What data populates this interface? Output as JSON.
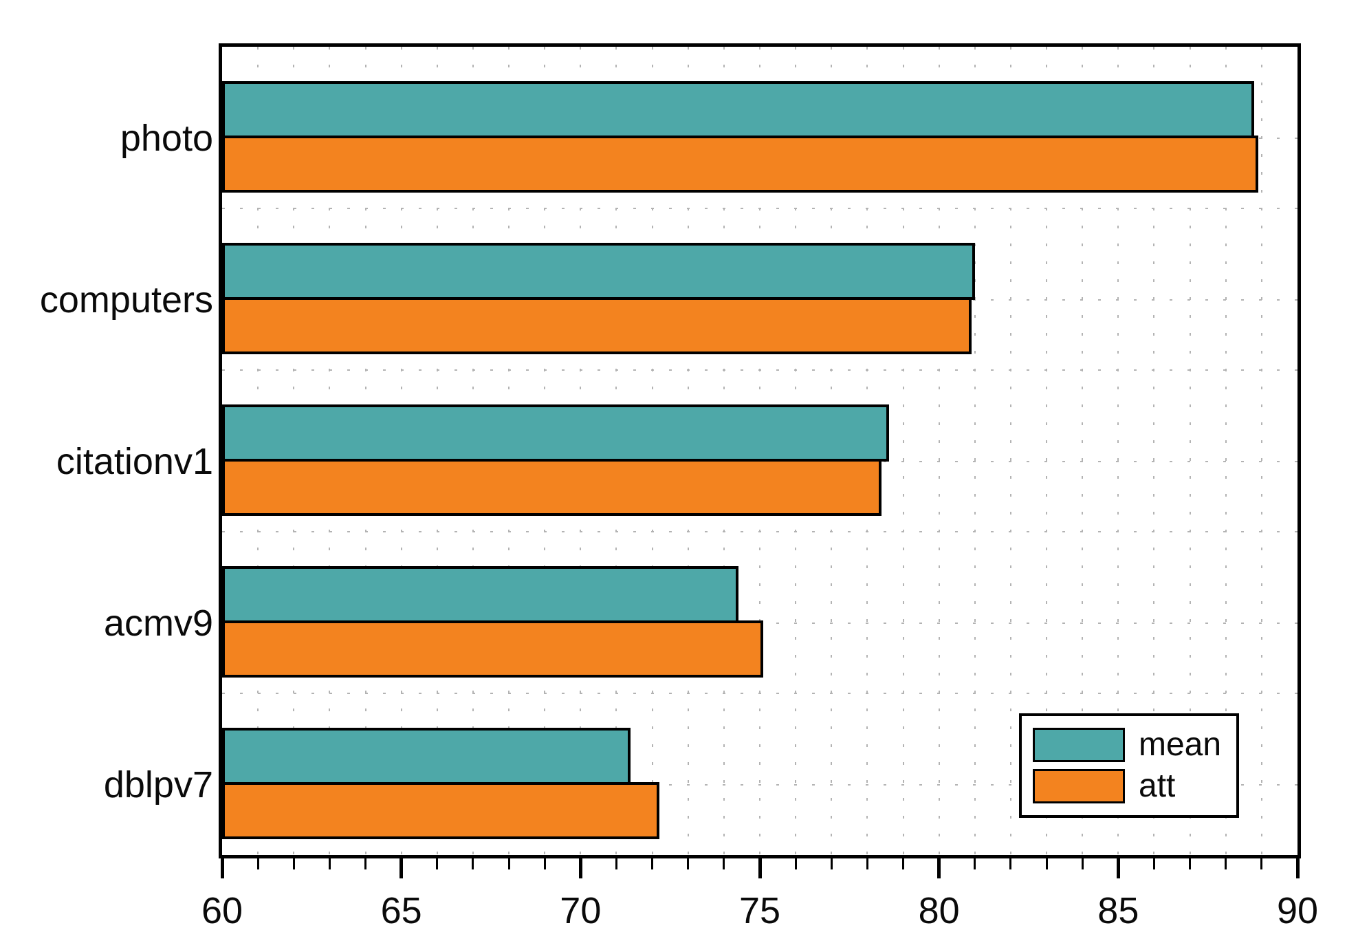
{
  "chart_data": {
    "type": "bar",
    "orientation": "horizontal",
    "title": "",
    "xlabel": "",
    "ylabel": "",
    "categories": [
      "photo",
      "computers",
      "citationv1",
      "acmv9",
      "dblpv7"
    ],
    "series": [
      {
        "name": "mean",
        "color": "#4EA8A8",
        "values": [
          88.8,
          81.0,
          78.6,
          74.4,
          71.4
        ]
      },
      {
        "name": "att",
        "color": "#F3831F",
        "values": [
          88.9,
          80.9,
          78.4,
          75.1,
          72.2
        ]
      }
    ],
    "xlim": [
      60,
      90
    ],
    "x_major_ticks": [
      60,
      65,
      70,
      75,
      80,
      85,
      90
    ],
    "x_minor_tick_step": 1,
    "grid": "dotted",
    "grid_color": "#b3b3b3",
    "legend_position": "bottom-right",
    "axis_color": "#000000"
  }
}
